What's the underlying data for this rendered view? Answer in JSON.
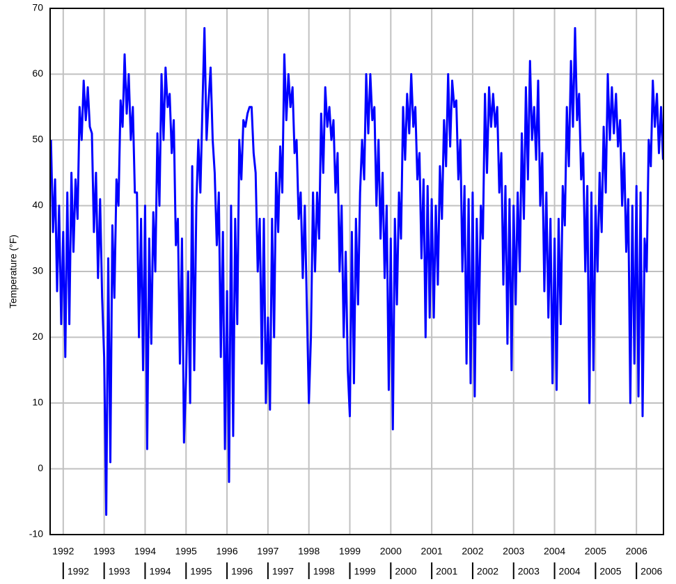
{
  "chart_data": {
    "type": "line",
    "ylabel": "Temperature (°F)",
    "xlim": [
      1991.68,
      2006.66
    ],
    "ylim": [
      -10,
      70
    ],
    "xticks": [
      1992,
      1993,
      1994,
      1995,
      1996,
      1997,
      1998,
      1999,
      2000,
      2001,
      2002,
      2003,
      2004,
      2005,
      2006
    ],
    "x2ticks": [
      1992,
      1993,
      1994,
      1995,
      1996,
      1997,
      1998,
      1999,
      2000,
      2001,
      2002,
      2003,
      2004,
      2005,
      2006
    ],
    "yticks": [
      -10,
      0,
      10,
      20,
      30,
      40,
      50,
      60,
      70
    ],
    "grid": true,
    "x": [
      1991.7,
      1991.75,
      1991.8,
      1991.85,
      1991.9,
      1991.95,
      1992,
      1992.05,
      1992.1,
      1992.15,
      1992.2,
      1992.25,
      1992.3,
      1992.35,
      1992.4,
      1992.45,
      1992.5,
      1992.55,
      1992.6,
      1992.65,
      1992.7,
      1992.75,
      1992.8,
      1992.85,
      1992.9,
      1992.95,
      1993,
      1993.05,
      1993.1,
      1993.15,
      1993.2,
      1993.25,
      1993.3,
      1993.35,
      1993.4,
      1993.45,
      1993.5,
      1993.55,
      1993.6,
      1993.65,
      1993.7,
      1993.75,
      1993.8,
      1993.85,
      1993.9,
      1993.95,
      1994,
      1994.05,
      1994.1,
      1994.15,
      1994.2,
      1994.25,
      1994.3,
      1994.35,
      1994.4,
      1994.45,
      1994.5,
      1994.55,
      1994.6,
      1994.65,
      1994.7,
      1994.75,
      1994.8,
      1994.85,
      1994.9,
      1994.95,
      1995,
      1995.05,
      1995.1,
      1995.15,
      1995.2,
      1995.25,
      1995.3,
      1995.35,
      1995.4,
      1995.45,
      1995.5,
      1995.55,
      1995.6,
      1995.65,
      1995.7,
      1995.75,
      1995.8,
      1995.85,
      1995.9,
      1995.95,
      1996,
      1996.05,
      1996.1,
      1996.15,
      1996.2,
      1996.25,
      1996.3,
      1996.35,
      1996.4,
      1996.45,
      1996.5,
      1996.55,
      1996.6,
      1996.65,
      1996.7,
      1996.75,
      1996.8,
      1996.85,
      1996.9,
      1996.95,
      1997,
      1997.05,
      1997.1,
      1997.15,
      1997.2,
      1997.25,
      1997.3,
      1997.35,
      1997.4,
      1997.45,
      1997.5,
      1997.55,
      1997.6,
      1997.65,
      1997.7,
      1997.75,
      1997.8,
      1997.85,
      1997.9,
      1997.95,
      1998,
      1998.05,
      1998.1,
      1998.15,
      1998.2,
      1998.25,
      1998.3,
      1998.35,
      1998.4,
      1998.45,
      1998.5,
      1998.55,
      1998.6,
      1998.65,
      1998.7,
      1998.75,
      1998.8,
      1998.85,
      1998.9,
      1998.95,
      1999,
      1999.05,
      1999.1,
      1999.15,
      1999.2,
      1999.25,
      1999.3,
      1999.35,
      1999.4,
      1999.45,
      1999.5,
      1999.55,
      1999.6,
      1999.65,
      1999.7,
      1999.75,
      1999.8,
      1999.85,
      1999.9,
      1999.95,
      2000,
      2000.05,
      2000.1,
      2000.15,
      2000.2,
      2000.25,
      2000.3,
      2000.35,
      2000.4,
      2000.45,
      2000.5,
      2000.55,
      2000.6,
      2000.65,
      2000.7,
      2000.75,
      2000.8,
      2000.85,
      2000.9,
      2000.95,
      2001,
      2001.05,
      2001.1,
      2001.15,
      2001.2,
      2001.25,
      2001.3,
      2001.35,
      2001.4,
      2001.45,
      2001.5,
      2001.55,
      2001.6,
      2001.65,
      2001.7,
      2001.75,
      2001.8,
      2001.85,
      2001.9,
      2001.95,
      2002,
      2002.05,
      2002.1,
      2002.15,
      2002.2,
      2002.25,
      2002.3,
      2002.35,
      2002.4,
      2002.45,
      2002.5,
      2002.55,
      2002.6,
      2002.65,
      2002.7,
      2002.75,
      2002.8,
      2002.85,
      2002.9,
      2002.95,
      2003,
      2003.05,
      2003.1,
      2003.15,
      2003.2,
      2003.25,
      2003.3,
      2003.35,
      2003.4,
      2003.45,
      2003.5,
      2003.55,
      2003.6,
      2003.65,
      2003.7,
      2003.75,
      2003.8,
      2003.85,
      2003.9,
      2003.95,
      2004,
      2004.05,
      2004.1,
      2004.15,
      2004.2,
      2004.25,
      2004.3,
      2004.35,
      2004.4,
      2004.45,
      2004.5,
      2004.55,
      2004.6,
      2004.65,
      2004.7,
      2004.75,
      2004.8,
      2004.85,
      2004.9,
      2004.95,
      2005,
      2005.05,
      2005.1,
      2005.15,
      2005.2,
      2005.25,
      2005.3,
      2005.35,
      2005.4,
      2005.45,
      2005.5,
      2005.55,
      2005.6,
      2005.65,
      2005.7,
      2005.75,
      2005.8,
      2005.85,
      2005.9,
      2005.95,
      2006,
      2006.05,
      2006.1,
      2006.15,
      2006.2,
      2006.25,
      2006.3,
      2006.35,
      2006.4,
      2006.45,
      2006.5,
      2006.55,
      2006.6,
      2006.65
    ],
    "series": [
      {
        "color": "#0000ff",
        "values": [
          50,
          36,
          44,
          27,
          40,
          22,
          36,
          17,
          42,
          22,
          45,
          33,
          44,
          38,
          55,
          50,
          59,
          53,
          58,
          52,
          51,
          36,
          45,
          29,
          41,
          26,
          17,
          -7,
          32,
          1,
          37,
          26,
          44,
          40,
          56,
          52,
          63,
          54,
          60,
          50,
          55,
          42,
          42,
          20,
          38,
          15,
          40,
          3,
          35,
          19,
          39,
          30,
          51,
          40,
          60,
          50,
          61,
          55,
          57,
          48,
          53,
          34,
          38,
          16,
          35,
          4,
          14,
          30,
          10,
          46,
          15,
          40,
          50,
          42,
          55,
          67,
          50,
          56,
          61,
          50,
          45,
          34,
          42,
          17,
          36,
          3,
          27,
          -2,
          40,
          5,
          38,
          22,
          50,
          44,
          53,
          52,
          54,
          55,
          55,
          48,
          45,
          30,
          38,
          16,
          38,
          10,
          23,
          9,
          38,
          20,
          45,
          36,
          49,
          42,
          63,
          53,
          60,
          55,
          58,
          48,
          50,
          38,
          42,
          29,
          40,
          25,
          10,
          20,
          42,
          30,
          42,
          35,
          54,
          45,
          58,
          52,
          55,
          50,
          53,
          42,
          48,
          30,
          40,
          20,
          33,
          15,
          8,
          36,
          13,
          38,
          25,
          42,
          50,
          44,
          60,
          51,
          60,
          53,
          55,
          40,
          50,
          35,
          45,
          29,
          40,
          12,
          35,
          6,
          38,
          25,
          42,
          35,
          55,
          47,
          57,
          51,
          60,
          52,
          55,
          44,
          48,
          32,
          44,
          20,
          43,
          23,
          41,
          23,
          40,
          28,
          46,
          38,
          53,
          46,
          60,
          49,
          59,
          55,
          56,
          44,
          50,
          30,
          43,
          16,
          41,
          13,
          42,
          11,
          38,
          22,
          40,
          35,
          57,
          45,
          58,
          52,
          57,
          52,
          55,
          42,
          48,
          28,
          43,
          19,
          41,
          15,
          40,
          25,
          42,
          30,
          51,
          38,
          58,
          44,
          62,
          50,
          55,
          47,
          59,
          40,
          48,
          27,
          42,
          23,
          38,
          13,
          35,
          12,
          38,
          22,
          43,
          37,
          55,
          46,
          62,
          52,
          67,
          53,
          57,
          44,
          48,
          30,
          43,
          10,
          42,
          15,
          40,
          30,
          45,
          36,
          52,
          42,
          60,
          50,
          58,
          51,
          57,
          49,
          53,
          40,
          48,
          33,
          41,
          10,
          40,
          16,
          43,
          11,
          42,
          8,
          35,
          30,
          50,
          46,
          59,
          52,
          57,
          48,
          55,
          47
        ]
      }
    ]
  }
}
